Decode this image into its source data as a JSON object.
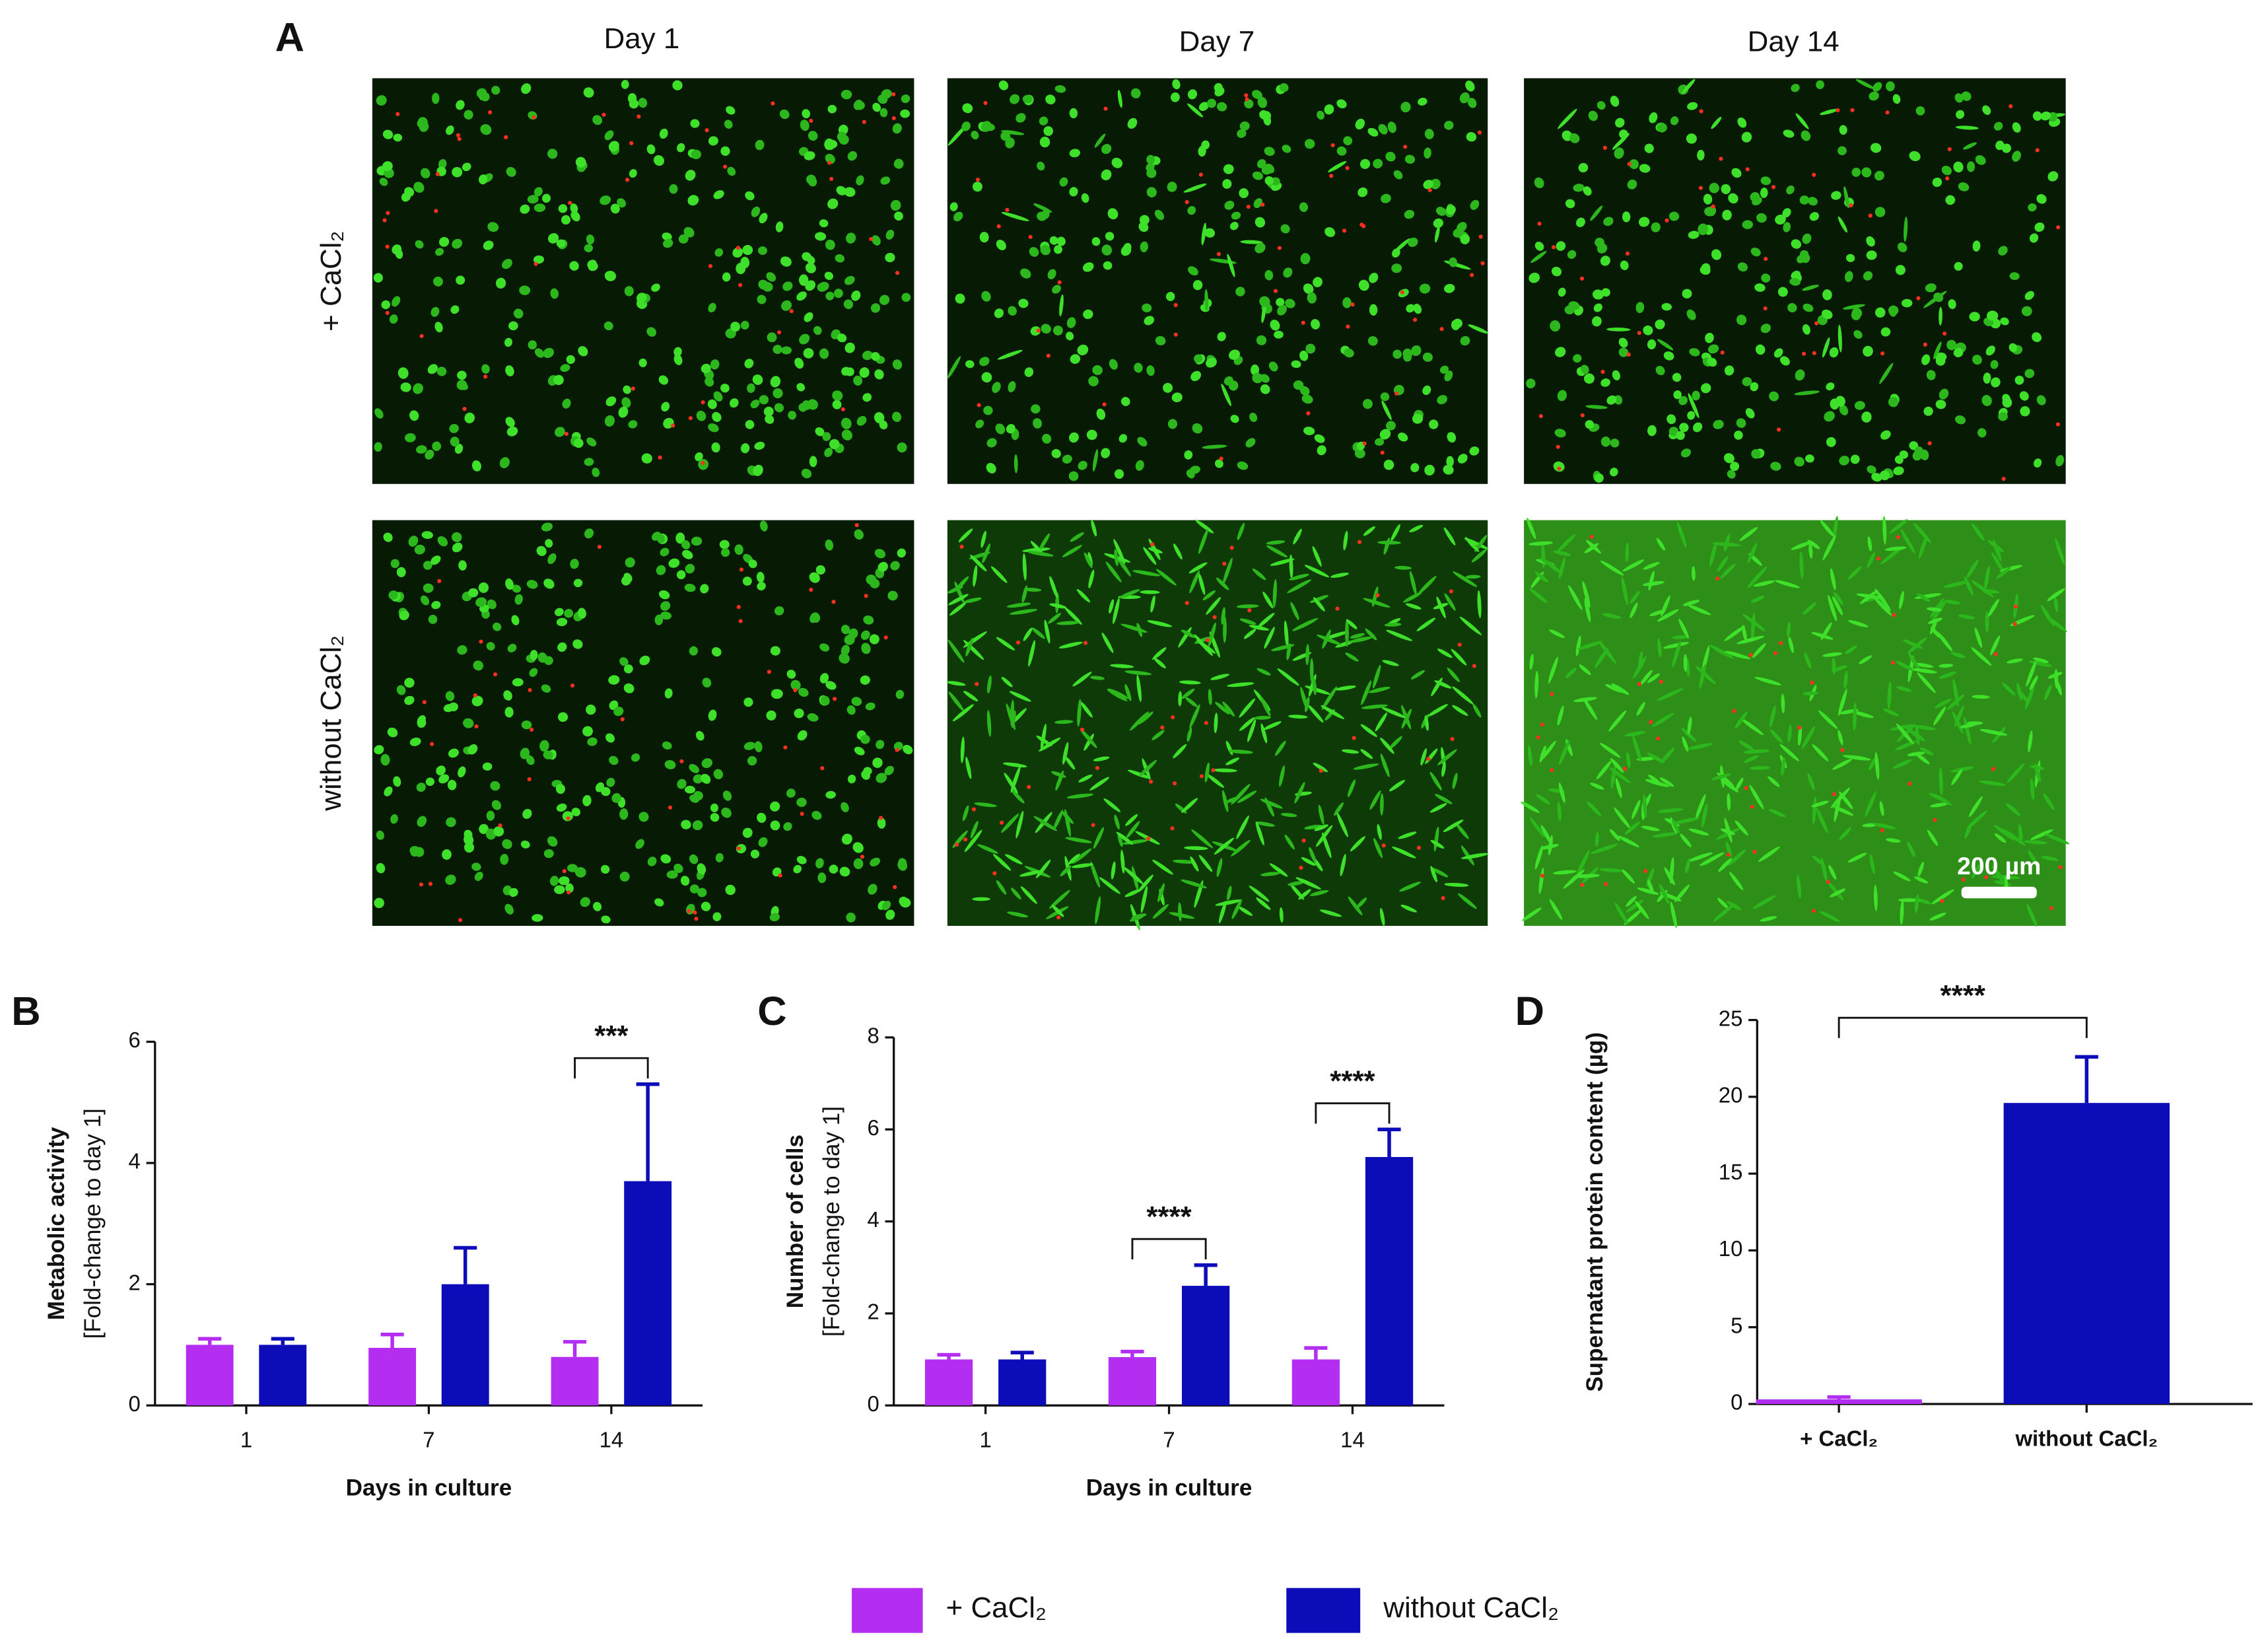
{
  "figure_a": {
    "label": "A",
    "columns": [
      "Day 1",
      "Day 7",
      "Day 14"
    ],
    "rows": [
      "+ CaCl₂",
      "without CaCl₂"
    ],
    "scale_bar": "200 µm"
  },
  "chart_data": [
    {
      "type": "bar",
      "panel": "B",
      "ylabel": [
        "Metabolic activity",
        "[Fold-change to day 1]"
      ],
      "xlabel": "Days in culture",
      "categories": [
        "1",
        "7",
        "14"
      ],
      "series": [
        {
          "name": "+ CaCl₂",
          "color": "#b32ef0",
          "values": [
            1.0,
            0.95,
            0.8
          ],
          "errors": [
            0.1,
            0.22,
            0.25
          ]
        },
        {
          "name": "without CaCl₂",
          "color": "#0c0cb8",
          "values": [
            1.0,
            2.0,
            3.7
          ],
          "errors": [
            0.1,
            0.6,
            1.6
          ]
        }
      ],
      "annotations": [
        null,
        null,
        "***"
      ],
      "ylim": [
        0,
        6
      ],
      "yticks": [
        0,
        2,
        4,
        6
      ]
    },
    {
      "type": "bar",
      "panel": "C",
      "ylabel": [
        "Number of cells",
        "[Fold-change to day 1]"
      ],
      "xlabel": "Days in culture",
      "categories": [
        "1",
        "7",
        "14"
      ],
      "series": [
        {
          "name": "+ CaCl₂",
          "color": "#b32ef0",
          "values": [
            1.0,
            1.05,
            1.0
          ],
          "errors": [
            0.1,
            0.12,
            0.25
          ]
        },
        {
          "name": "without CaCl₂",
          "color": "#0c0cb8",
          "values": [
            1.0,
            2.6,
            5.4
          ],
          "errors": [
            0.15,
            0.45,
            0.6
          ]
        }
      ],
      "annotations": [
        null,
        "****",
        "****"
      ],
      "ylim": [
        0,
        8
      ],
      "yticks": [
        0,
        2,
        4,
        6,
        8
      ]
    },
    {
      "type": "bar",
      "panel": "D",
      "ylabel": [
        "Supernatant protein content (µg)"
      ],
      "categories": [
        "+ CaCl₂",
        "without CaCl₂"
      ],
      "values": [
        0.3,
        19.6
      ],
      "errors": [
        0.15,
        3.0
      ],
      "colors": [
        "#b32ef0",
        "#0c0cb8"
      ],
      "annotation": "****",
      "ylim": [
        0,
        25
      ],
      "yticks": [
        0,
        5,
        10,
        15,
        20,
        25
      ]
    }
  ]
}
